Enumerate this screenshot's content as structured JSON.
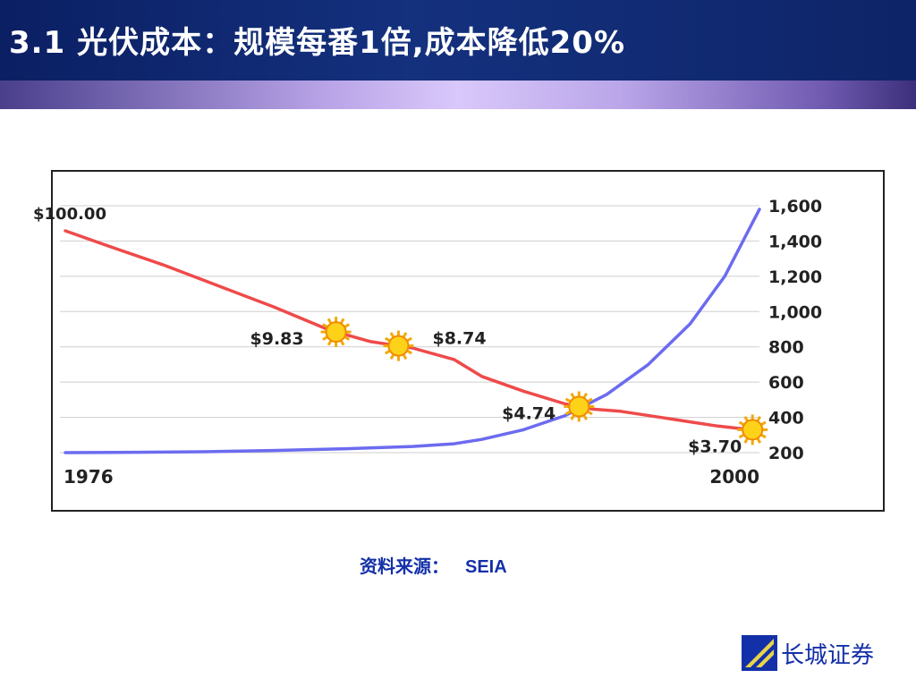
{
  "header": {
    "title": "3.1 光伏成本：规模每番1倍,成本降低20%"
  },
  "chart_data": {
    "type": "line",
    "x_start_label": "1976",
    "x_end_label": "2000",
    "y_right_ticks": [
      "1,600",
      "1,400",
      "1,200",
      "1,000",
      "800",
      "600",
      "400",
      "200"
    ],
    "y_right_range": [
      200,
      1600
    ],
    "series": [
      {
        "color": "#ef4a4a",
        "points": [
          [
            0,
            100
          ],
          [
            0.06,
            93
          ],
          [
            0.14,
            84
          ],
          [
            0.22,
            74
          ],
          [
            0.3,
            64
          ],
          [
            0.38,
            53
          ],
          [
            0.44,
            47.5
          ],
          [
            0.5,
            44.5
          ],
          [
            0.56,
            39
          ],
          [
            0.6,
            31
          ],
          [
            0.66,
            24
          ],
          [
            0.72,
            18
          ],
          [
            0.76,
            15.5
          ],
          [
            0.8,
            14.5
          ],
          [
            0.85,
            12
          ],
          [
            0.9,
            9.5
          ],
          [
            0.94,
            7.5
          ],
          [
            0.98,
            6
          ],
          [
            1.0,
            5.5
          ]
        ],
        "price_labels": [
          {
            "text": "$100.00",
            "at": 0.0
          },
          {
            "text": "$9.83",
            "at": 0.39
          },
          {
            "text": "$8.74",
            "at": 0.48
          },
          {
            "text": "$4.74",
            "at": 0.74
          },
          {
            "text": "$3.70",
            "at": 0.99
          }
        ]
      },
      {
        "color": "#6b6bf0",
        "points": [
          [
            0,
            200
          ],
          [
            0.1,
            202
          ],
          [
            0.2,
            205
          ],
          [
            0.3,
            212
          ],
          [
            0.4,
            222
          ],
          [
            0.5,
            235
          ],
          [
            0.56,
            250
          ],
          [
            0.6,
            275
          ],
          [
            0.66,
            330
          ],
          [
            0.72,
            410
          ],
          [
            0.78,
            530
          ],
          [
            0.84,
            700
          ],
          [
            0.9,
            930
          ],
          [
            0.95,
            1200
          ],
          [
            1.0,
            1580
          ]
        ]
      }
    ],
    "markers": [
      0.39,
      0.48,
      0.74,
      0.99
    ],
    "gridlines": true
  },
  "source": {
    "label": "资料来源：",
    "value": "SEIA"
  },
  "logo": {
    "text": "长城证券"
  }
}
